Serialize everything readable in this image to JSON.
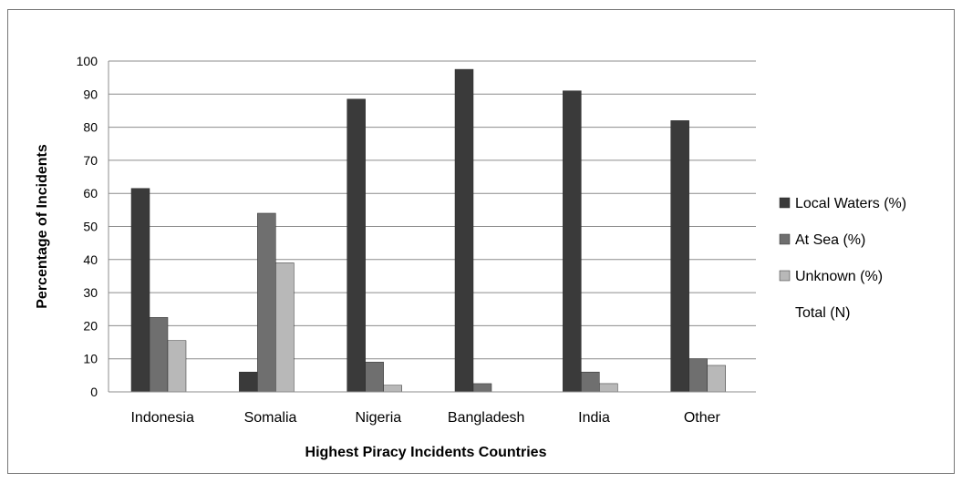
{
  "chart_data": {
    "type": "bar",
    "categories": [
      "Indonesia",
      "Somalia",
      "Nigeria",
      "Bangladesh",
      "India",
      "Other"
    ],
    "series": [
      {
        "name": "Local Waters (%)",
        "color": "#3a3a3a",
        "values": [
          61.5,
          6,
          88.5,
          97.5,
          91,
          82
        ]
      },
      {
        "name": "At Sea (%)",
        "color": "#6f6f6f",
        "values": [
          22.5,
          54,
          9,
          2.5,
          6,
          10
        ]
      },
      {
        "name": "Unknown (%)",
        "color": "#b8b8b8",
        "values": [
          15.5,
          39,
          2,
          0,
          2.5,
          8
        ]
      },
      {
        "name": "Total (N)",
        "color": "#ffffff",
        "values": [
          null,
          null,
          null,
          null,
          null,
          null
        ]
      }
    ],
    "yticks": [
      0,
      10,
      20,
      30,
      40,
      50,
      60,
      70,
      80,
      90,
      100
    ],
    "ylim": [
      0,
      100
    ],
    "xlabel": "Highest Piracy Incidents Countries",
    "ylabel": "Percentage of Incidents",
    "grid": true,
    "legend_position": "right"
  }
}
